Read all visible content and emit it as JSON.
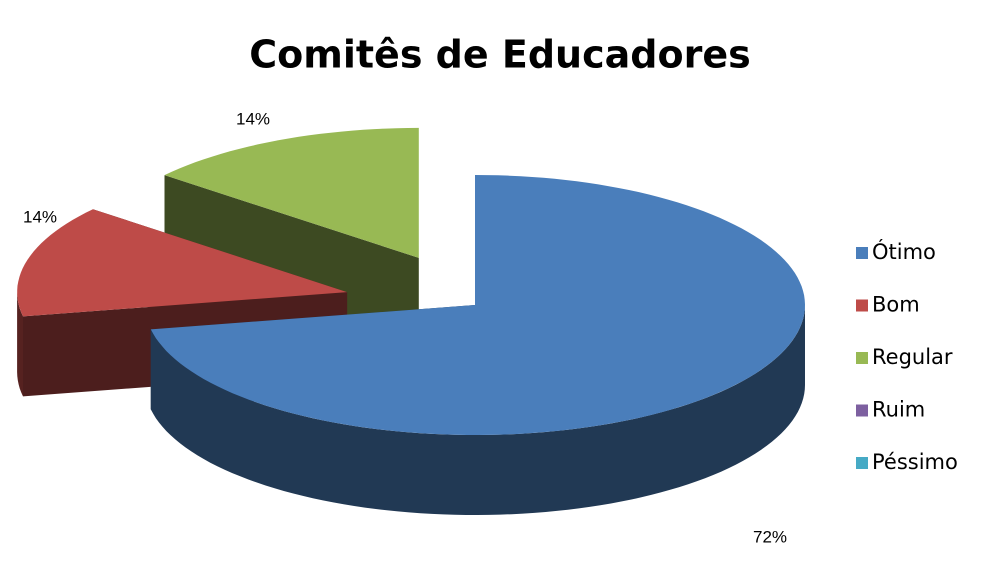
{
  "chart_data": {
    "type": "pie",
    "title": "Comitês de Educadores",
    "categories": [
      "Ótimo",
      "Bom",
      "Regular",
      "Ruim",
      "Péssimo"
    ],
    "values": [
      72,
      14,
      14,
      0,
      0
    ],
    "value_labels": [
      "72%",
      "14%",
      "14%",
      null,
      null
    ],
    "colors": [
      "#4a7ebb",
      "#be4b48",
      "#98b954",
      "#7d60a0",
      "#46aac5"
    ],
    "legend": "right"
  }
}
